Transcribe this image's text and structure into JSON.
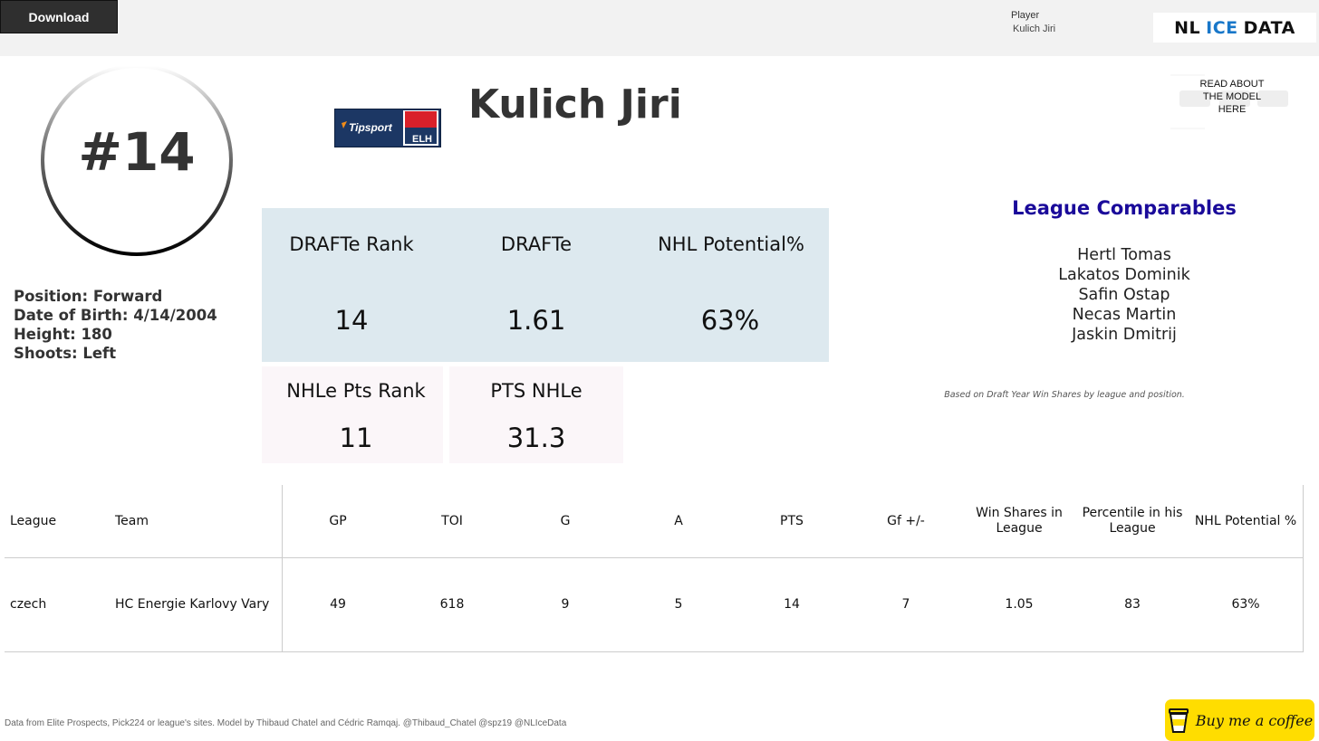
{
  "toolbar": {
    "download_label": "Download"
  },
  "filter": {
    "label": "Player",
    "value": "Kulich Jiri"
  },
  "logo": {
    "left": "NL",
    "middle": "ICE",
    "right": "DATA"
  },
  "player": {
    "number": "#14",
    "name": "Kulich Jiri",
    "position": "Position: Forward",
    "dob": "Date of Birth: 4/14/2004",
    "height": "Height: 180",
    "shoots": "Shoots: Left"
  },
  "league_logo": {
    "brand": "Tipsport",
    "league": "ELH"
  },
  "model_link": {
    "label": "READ ABOUT THE MODEL HERE"
  },
  "metrics": {
    "draft_rank_label": "DRAFTe Rank",
    "draft_rank_value": "14",
    "drafte_label": "DRAFTe",
    "drafte_value": "1.61",
    "nhl_potential_label": "NHL Potential%",
    "nhl_potential_value": "63%",
    "nhle_pts_rank_label": "NHLe Pts Rank",
    "nhle_pts_rank_value": "11",
    "pts_nhle_label": "PTS NHLe",
    "pts_nhle_value": "31.3"
  },
  "comparables": {
    "title": "League Comparables",
    "players": [
      "Hertl Tomas",
      "Lakatos Dominik",
      "Safin Ostap",
      "Necas Martin",
      "Jaskin Dmitrij"
    ],
    "note": "Based on Draft Year Win Shares by league and position."
  },
  "table": {
    "headers": [
      "League",
      "Team",
      "GP",
      "TOI",
      "G",
      "A",
      "PTS",
      "Gf +/-",
      "Win Shares in League",
      "Percentile in his League",
      "NHL Potential %"
    ],
    "row": [
      "czech",
      "HC Energie Karlovy Vary",
      "49",
      "618",
      "9",
      "5",
      "14",
      "7",
      "1.05",
      "83",
      "63%"
    ]
  },
  "footer": {
    "credits": "Data from Elite Prospects, Pick224 or league's sites. Model by Thibaud Chatel and Cédric Ramqaj. @Thibaud_Chatel @spz19 @NLIceData"
  },
  "coffee": {
    "label": "Buy me a coffee"
  },
  "colors": {
    "panel_blue": "#dde9ef",
    "panel_pink": "#fbf6f9",
    "comparables_title": "#1a0a9a",
    "coffee_yellow": "#ffdd00",
    "logo_accent": "#1877c9"
  }
}
